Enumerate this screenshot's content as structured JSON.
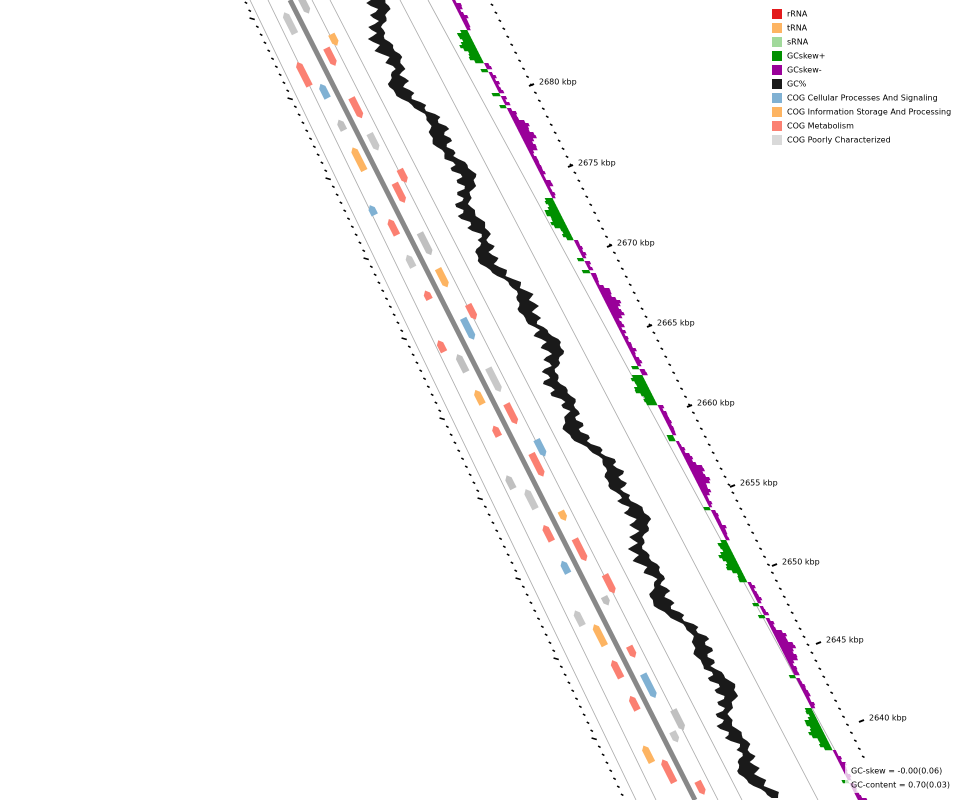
{
  "legend": [
    {
      "label": "rRNA",
      "color": "#e31a1c"
    },
    {
      "label": "tRNA",
      "color": "#fdb462"
    },
    {
      "label": "sRNA",
      "color": "#a1d99b"
    },
    {
      "label": "GCskew+",
      "color": "#009000"
    },
    {
      "label": "GCskew-",
      "color": "#990099"
    },
    {
      "label": "GC%",
      "color": "#1a1a1a"
    },
    {
      "label": "COG Cellular Processes And Signaling",
      "color": "#80b1d3"
    },
    {
      "label": "COG Information Storage And Processing",
      "color": "#fdb462"
    },
    {
      "label": "COG Metabolism",
      "color": "#fb8072"
    },
    {
      "label": "COG Poorly Characterized",
      "color": "#d9d9d9"
    }
  ],
  "ruler_labels": [
    "2680 kbp",
    "2675 kbp",
    "2670 kbp",
    "2665 kbp",
    "2660 kbp",
    "2655 kbp",
    "2650 kbp",
    "2645 kbp",
    "2640 kbp"
  ],
  "footer": {
    "gc_skew": "GC-skew = -0.00(0.06)",
    "gc_content": "GC-content = 0.70(0.03)"
  }
}
